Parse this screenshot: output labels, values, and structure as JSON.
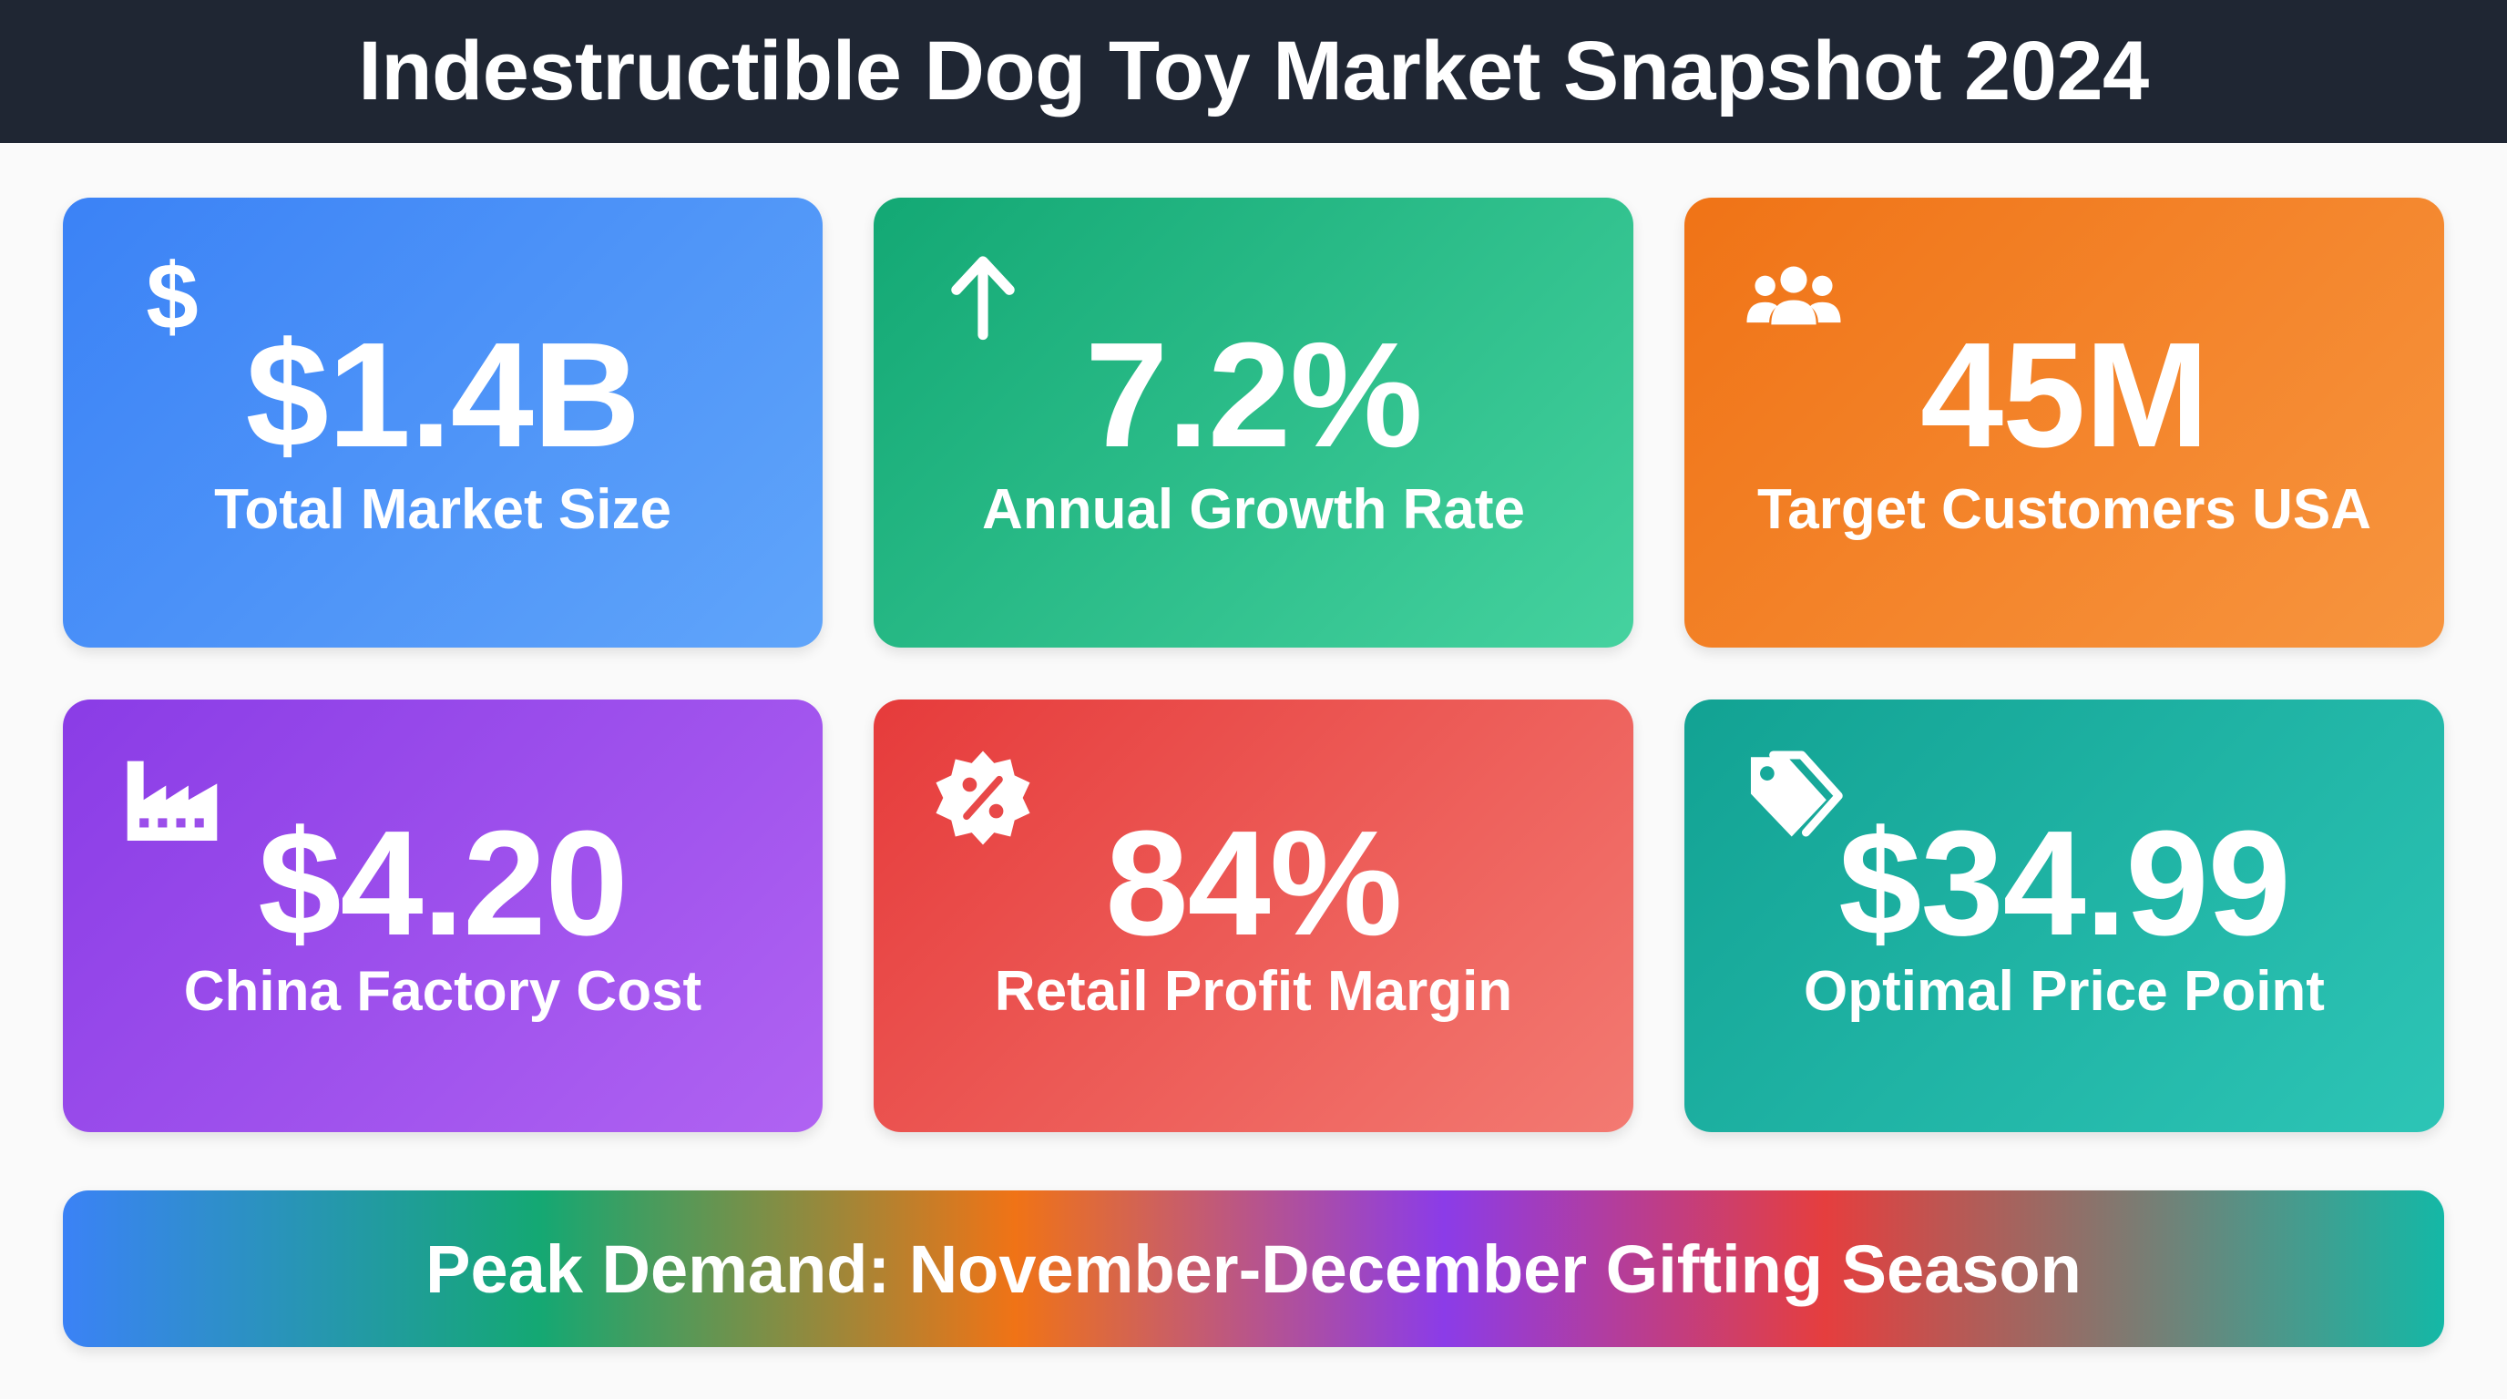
{
  "header": {
    "title": "Indestructible Dog Toy Market Snapshot 2024"
  },
  "cards": [
    {
      "value": "$1.4B",
      "label": "Total Market Size",
      "icon": "dollar-icon",
      "color_from": "#3b82f6",
      "color_to": "#60a5fa"
    },
    {
      "value": "7.2%",
      "label": "Annual Growth Rate",
      "icon": "arrow-up-icon",
      "color_from": "#13a874",
      "color_to": "#45d29f"
    },
    {
      "value": "45M",
      "label": "Target Customers USA",
      "icon": "users-icon",
      "color_from": "#f07316",
      "color_to": "#f7953f"
    },
    {
      "value": "$4.20",
      "label": "China Factory Cost",
      "icon": "factory-icon",
      "color_from": "#8a3ce6",
      "color_to": "#b063f2"
    },
    {
      "value": "84%",
      "label": "Retail Profit Margin",
      "icon": "percent-badge-icon",
      "color_from": "#e63b3b",
      "color_to": "#f37a72"
    },
    {
      "value": "$34.99",
      "label": "Optimal Price Point",
      "icon": "tags-icon",
      "color_from": "#12a293",
      "color_to": "#2dc5b6"
    }
  ],
  "banner": {
    "text": "Peak Demand: November-December Gifting Season"
  }
}
